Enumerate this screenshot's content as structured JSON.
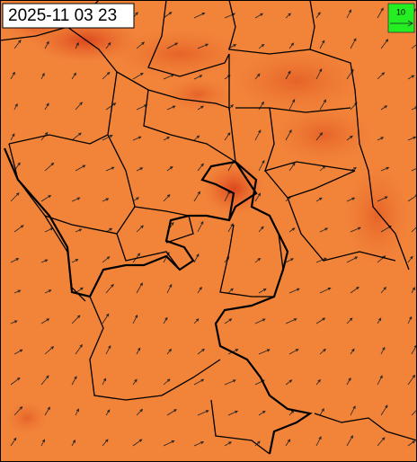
{
  "timestamp": "2025-11 03 23",
  "legend": {
    "label": "10"
  }
}
